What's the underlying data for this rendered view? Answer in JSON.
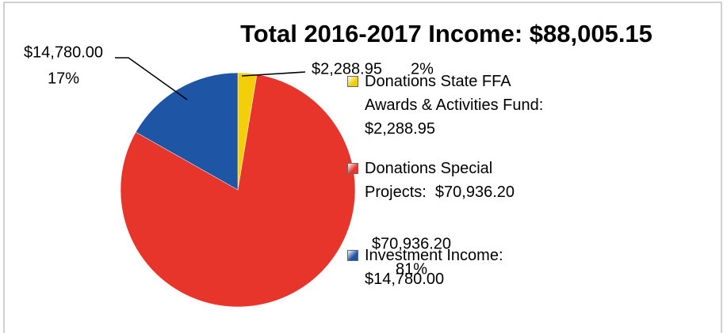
{
  "chart_data": {
    "type": "pie",
    "title": "Total 2016-2017 Income: $88,005.15",
    "categories": [
      "Donations State FFA Awards & Activities Fund: $2,288.95",
      "Donations Special Projects:  $70,936.20",
      "Investment Income: $14,780.00"
    ],
    "values": [
      2288.95,
      70936.2,
      14780.0
    ],
    "value_labels": [
      "$2,288.95",
      "$70,936.20",
      "$14,780.00"
    ],
    "percent_labels": [
      "2%",
      "81%",
      "17%"
    ],
    "colors": [
      "#f2cf0a",
      "#e8352b",
      "#1f55a5"
    ],
    "legend": "right"
  }
}
